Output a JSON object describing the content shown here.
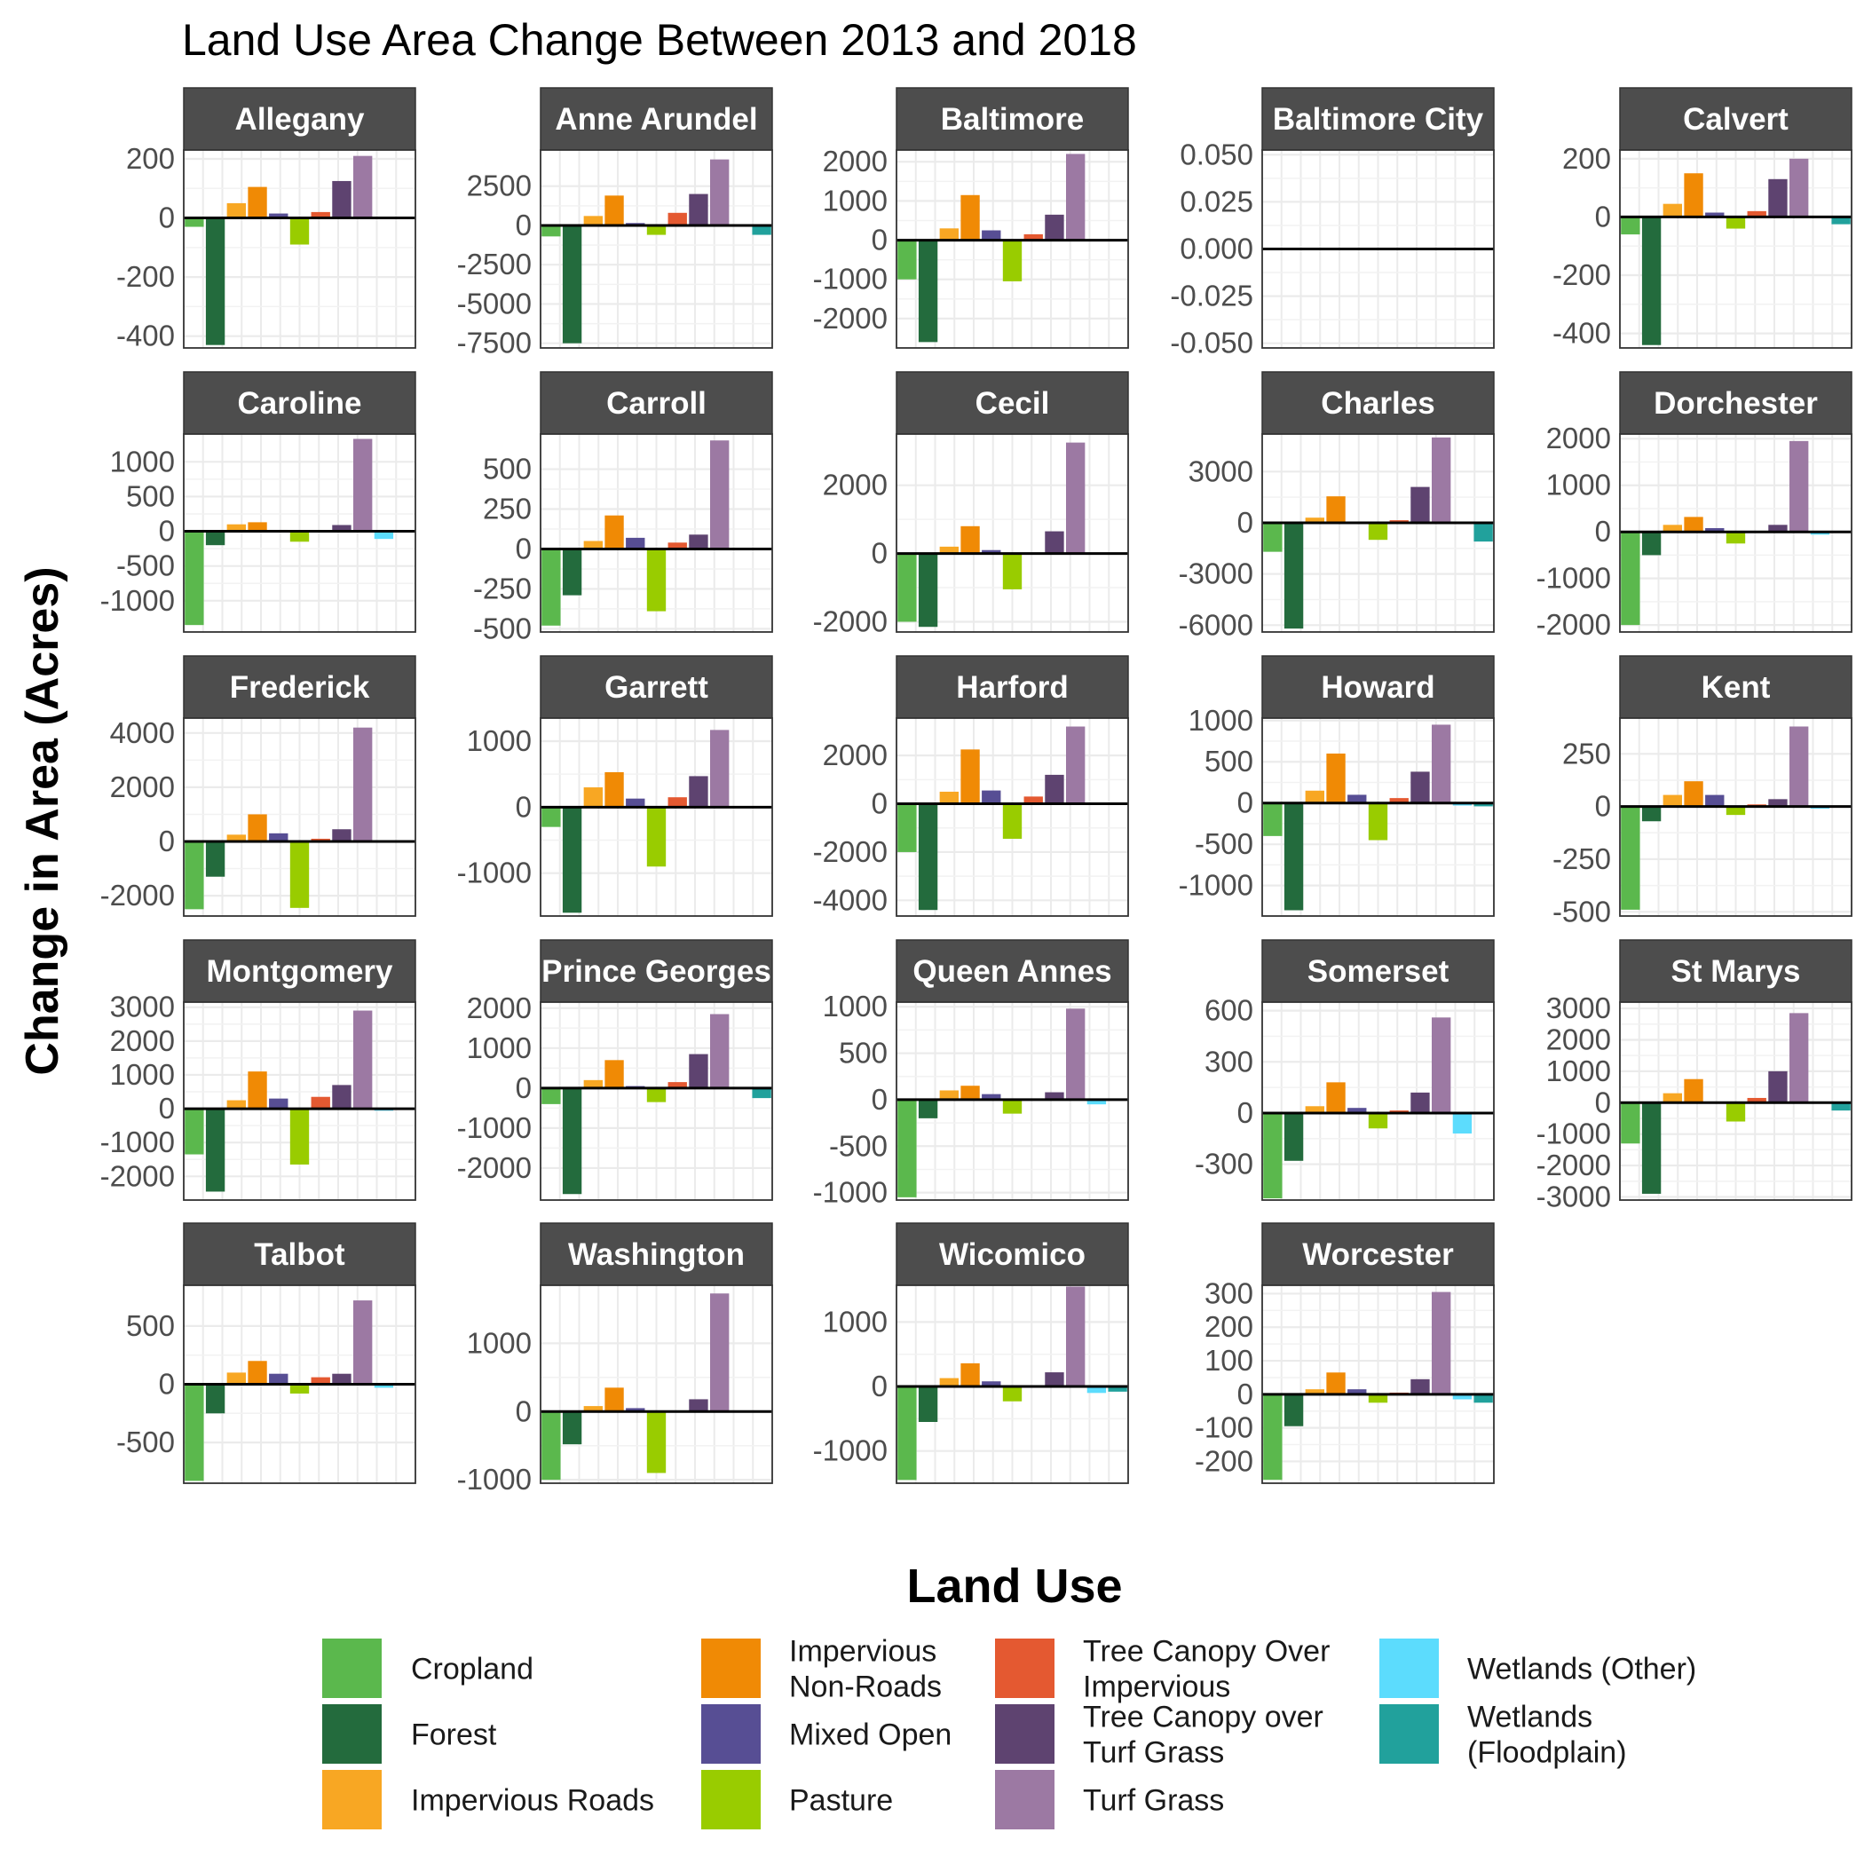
{
  "chart_data": {
    "type": "bar",
    "title": "Land Use Area Change Between 2013 and 2018",
    "ylabel": "Change in Area (Acres)",
    "legend": {
      "title": "Land Use",
      "placement": "bottom",
      "entries": [
        {
          "label": "Cropland",
          "lines": [
            "Cropland"
          ],
          "color": "#5bb84d"
        },
        {
          "label": "Forest",
          "lines": [
            "Forest"
          ],
          "color": "#236b3d"
        },
        {
          "label": "Impervious Roads",
          "lines": [
            "Impervious Roads"
          ],
          "color": "#f8a723"
        },
        {
          "label": "Impervious Non-Roads",
          "lines": [
            "Impervious",
            "Non-Roads"
          ],
          "color": "#f08a05"
        },
        {
          "label": "Mixed Open",
          "lines": [
            "Mixed Open"
          ],
          "color": "#574e94"
        },
        {
          "label": "Pasture",
          "lines": [
            "Pasture"
          ],
          "color": "#99cc00"
        },
        {
          "label": "Tree Canopy Over Impervious",
          "lines": [
            "Tree Canopy Over",
            "Impervious"
          ],
          "color": "#e45931"
        },
        {
          "label": "Tree Canopy over Turf Grass",
          "lines": [
            "Tree Canopy over",
            "Turf Grass"
          ],
          "color": "#5e4370"
        },
        {
          "label": "Turf Grass",
          "lines": [
            "Turf Grass"
          ],
          "color": "#9c79a3"
        },
        {
          "label": "Wetlands (Other)",
          "lines": [
            "Wetlands (Other)"
          ],
          "color": "#5cdcfd"
        },
        {
          "label": "Wetlands (Floodplain)",
          "lines": [
            "Wetlands",
            "(Floodplain)"
          ],
          "color": "#21a19c"
        }
      ]
    },
    "categories": [
      "Cropland",
      "Forest",
      "Impervious Roads",
      "Impervious Non-Roads",
      "Mixed Open",
      "Pasture",
      "Tree Canopy Over Impervious",
      "Tree Canopy over Turf Grass",
      "Turf Grass",
      "Wetlands (Other)",
      "Wetlands (Floodplain)"
    ],
    "grid": true,
    "facets": [
      {
        "name": "Allegany",
        "ylim": [
          -440,
          230
        ],
        "ticks": [
          -400,
          -200,
          0,
          200
        ],
        "tick_labels": [
          "-400",
          "-200",
          "0",
          "200"
        ],
        "values": [
          -30,
          -430,
          50,
          105,
          15,
          -90,
          20,
          125,
          210,
          0,
          0
        ]
      },
      {
        "name": "Anne Arundel",
        "ylim": [
          -7800,
          4800
        ],
        "ticks": [
          -7500,
          -5000,
          -2500,
          0,
          2500
        ],
        "tick_labels": [
          "-7500",
          "-5000",
          "-2500",
          "0",
          "2500"
        ],
        "values": [
          -700,
          -7500,
          600,
          1900,
          150,
          -600,
          800,
          2000,
          4200,
          0,
          -600
        ]
      },
      {
        "name": "Baltimore",
        "ylim": [
          -2750,
          2300
        ],
        "ticks": [
          -2000,
          -1000,
          0,
          1000,
          2000
        ],
        "tick_labels": [
          "-2000",
          "-1000",
          "0",
          "1000",
          "2000"
        ],
        "values": [
          -1000,
          -2600,
          300,
          1150,
          250,
          -1050,
          150,
          650,
          2200,
          0,
          0
        ]
      },
      {
        "name": "Baltimore City",
        "ylim": [
          -0.0525,
          0.0525
        ],
        "ticks": [
          -0.05,
          -0.025,
          0,
          0.025,
          0.05
        ],
        "tick_labels": [
          "-0.050",
          "-0.025",
          "0.000",
          "0.025",
          "0.050"
        ],
        "values": [
          0,
          0,
          0,
          0,
          0,
          0,
          0,
          0,
          0,
          0,
          0
        ]
      },
      {
        "name": "Calvert",
        "ylim": [
          -450,
          230
        ],
        "ticks": [
          -400,
          -200,
          0,
          200
        ],
        "tick_labels": [
          "-400",
          "-200",
          "0",
          "200"
        ],
        "values": [
          -60,
          -440,
          45,
          150,
          15,
          -40,
          20,
          130,
          200,
          0,
          -25
        ]
      },
      {
        "name": "Caroline",
        "ylim": [
          -1450,
          1400
        ],
        "ticks": [
          -1000,
          -500,
          0,
          500,
          1000
        ],
        "tick_labels": [
          "-1000",
          "-500",
          "0",
          "500",
          "1000"
        ],
        "values": [
          -1350,
          -200,
          100,
          130,
          20,
          -150,
          10,
          90,
          1330,
          -110,
          0
        ]
      },
      {
        "name": "Carroll",
        "ylim": [
          -520,
          720
        ],
        "ticks": [
          -500,
          -250,
          0,
          250,
          500
        ],
        "tick_labels": [
          "-500",
          "-250",
          "0",
          "250",
          "500"
        ],
        "values": [
          -480,
          -290,
          50,
          210,
          70,
          -390,
          40,
          90,
          680,
          0,
          0
        ]
      },
      {
        "name": "Cecil",
        "ylim": [
          -2300,
          3500
        ],
        "ticks": [
          -2000,
          0,
          2000
        ],
        "tick_labels": [
          "-2000",
          "0",
          "2000"
        ],
        "values": [
          -2000,
          -2150,
          200,
          800,
          100,
          -1050,
          20,
          650,
          3250,
          0,
          0
        ]
      },
      {
        "name": "Charles",
        "ylim": [
          -6400,
          5200
        ],
        "ticks": [
          -6000,
          -3000,
          0,
          3000
        ],
        "tick_labels": [
          "-6000",
          "-3000",
          "0",
          "3000"
        ],
        "values": [
          -1700,
          -6200,
          300,
          1550,
          50,
          -1000,
          150,
          2100,
          5000,
          0,
          -1100
        ]
      },
      {
        "name": "Dorchester",
        "ylim": [
          -2150,
          2100
        ],
        "ticks": [
          -2000,
          -1000,
          0,
          1000,
          2000
        ],
        "tick_labels": [
          "-2000",
          "-1000",
          "0",
          "1000",
          "2000"
        ],
        "values": [
          -2000,
          -500,
          150,
          320,
          80,
          -250,
          20,
          150,
          1950,
          -60,
          0
        ]
      },
      {
        "name": "Frederick",
        "ylim": [
          -2750,
          4550
        ],
        "ticks": [
          -2000,
          0,
          2000,
          4000
        ],
        "tick_labels": [
          "-2000",
          "0",
          "2000",
          "4000"
        ],
        "values": [
          -2500,
          -1300,
          250,
          1000,
          300,
          -2450,
          100,
          450,
          4200,
          0,
          0
        ]
      },
      {
        "name": "Garrett",
        "ylim": [
          -1650,
          1350
        ],
        "ticks": [
          -1000,
          0,
          1000
        ],
        "tick_labels": [
          "-1000",
          "0",
          "1000"
        ],
        "values": [
          -300,
          -1600,
          300,
          530,
          130,
          -900,
          150,
          470,
          1170,
          0,
          0
        ]
      },
      {
        "name": "Harford",
        "ylim": [
          -4650,
          3550
        ],
        "ticks": [
          -4000,
          -2000,
          0,
          2000
        ],
        "tick_labels": [
          "-4000",
          "-2000",
          "0",
          "2000"
        ],
        "values": [
          -2000,
          -4400,
          500,
          2250,
          550,
          -1450,
          300,
          1200,
          3200,
          0,
          0
        ]
      },
      {
        "name": "Howard",
        "ylim": [
          -1370,
          1030
        ],
        "ticks": [
          -1000,
          -500,
          0,
          500,
          1000
        ],
        "tick_labels": [
          "-1000",
          "-500",
          "0",
          "500",
          "1000"
        ],
        "values": [
          -400,
          -1300,
          150,
          600,
          100,
          -450,
          60,
          380,
          950,
          -30,
          -40
        ]
      },
      {
        "name": "Kent",
        "ylim": [
          -520,
          420
        ],
        "ticks": [
          -500,
          -250,
          0,
          250
        ],
        "tick_labels": [
          "-500",
          "-250",
          "0",
          "250"
        ],
        "values": [
          -490,
          -70,
          55,
          120,
          55,
          -40,
          10,
          35,
          380,
          -10,
          0
        ]
      },
      {
        "name": "Montgomery",
        "ylim": [
          -2700,
          3150
        ],
        "ticks": [
          -2000,
          -1000,
          0,
          1000,
          2000,
          3000
        ],
        "tick_labels": [
          "-2000",
          "-1000",
          "0",
          "1000",
          "2000",
          "3000"
        ],
        "values": [
          -1350,
          -2450,
          250,
          1100,
          300,
          -1650,
          350,
          700,
          2900,
          -60,
          0
        ]
      },
      {
        "name": "Prince Georges",
        "ylim": [
          -2800,
          2150
        ],
        "ticks": [
          -2000,
          -1000,
          0,
          1000,
          2000
        ],
        "tick_labels": [
          "-2000",
          "-1000",
          "0",
          "1000",
          "2000"
        ],
        "values": [
          -400,
          -2650,
          200,
          700,
          50,
          -350,
          150,
          850,
          1850,
          0,
          -250
        ]
      },
      {
        "name": "Queen Annes",
        "ylim": [
          -1080,
          1050
        ],
        "ticks": [
          -1000,
          -500,
          0,
          500,
          1000
        ],
        "tick_labels": [
          "-1000",
          "-500",
          "0",
          "500",
          "1000"
        ],
        "values": [
          -1050,
          -200,
          100,
          150,
          60,
          -150,
          10,
          80,
          980,
          -50,
          0
        ]
      },
      {
        "name": "Somerset",
        "ylim": [
          -510,
          650
        ],
        "ticks": [
          -300,
          0,
          300,
          600
        ],
        "tick_labels": [
          "-300",
          "0",
          "300",
          "600"
        ],
        "values": [
          -500,
          -280,
          40,
          180,
          30,
          -90,
          15,
          120,
          560,
          -120,
          0
        ]
      },
      {
        "name": "St Marys",
        "ylim": [
          -3100,
          3200
        ],
        "ticks": [
          -3000,
          -2000,
          -1000,
          0,
          1000,
          2000,
          3000
        ],
        "tick_labels": [
          "-3000",
          "-2000",
          "-1000",
          "0",
          "1000",
          "2000",
          "3000"
        ],
        "values": [
          -1300,
          -2900,
          300,
          750,
          30,
          -600,
          150,
          1000,
          2850,
          0,
          -250
        ]
      },
      {
        "name": "Talbot",
        "ylim": [
          -850,
          850
        ],
        "ticks": [
          -500,
          0,
          500
        ],
        "tick_labels": [
          "-500",
          "0",
          "500"
        ],
        "values": [
          -830,
          -250,
          100,
          200,
          90,
          -80,
          60,
          90,
          720,
          -30,
          0
        ]
      },
      {
        "name": "Washington",
        "ylim": [
          -1050,
          1850
        ],
        "ticks": [
          -1000,
          0,
          1000
        ],
        "tick_labels": [
          "-1000",
          "0",
          "1000"
        ],
        "values": [
          -1000,
          -480,
          80,
          350,
          50,
          -900,
          0,
          180,
          1730,
          0,
          0
        ]
      },
      {
        "name": "Wicomico",
        "ylim": [
          -1500,
          1570
        ],
        "ticks": [
          -1000,
          0,
          1000
        ],
        "tick_labels": [
          "-1000",
          "0",
          "1000"
        ],
        "values": [
          -1450,
          -550,
          130,
          360,
          80,
          -230,
          10,
          220,
          1550,
          -100,
          -80
        ]
      },
      {
        "name": "Worcester",
        "ylim": [
          -265,
          325
        ],
        "ticks": [
          -200,
          -100,
          0,
          100,
          200,
          300
        ],
        "tick_labels": [
          "-200",
          "-100",
          "0",
          "100",
          "200",
          "300"
        ],
        "values": [
          -255,
          -95,
          15,
          65,
          15,
          -25,
          5,
          45,
          305,
          -15,
          -25
        ]
      }
    ]
  }
}
